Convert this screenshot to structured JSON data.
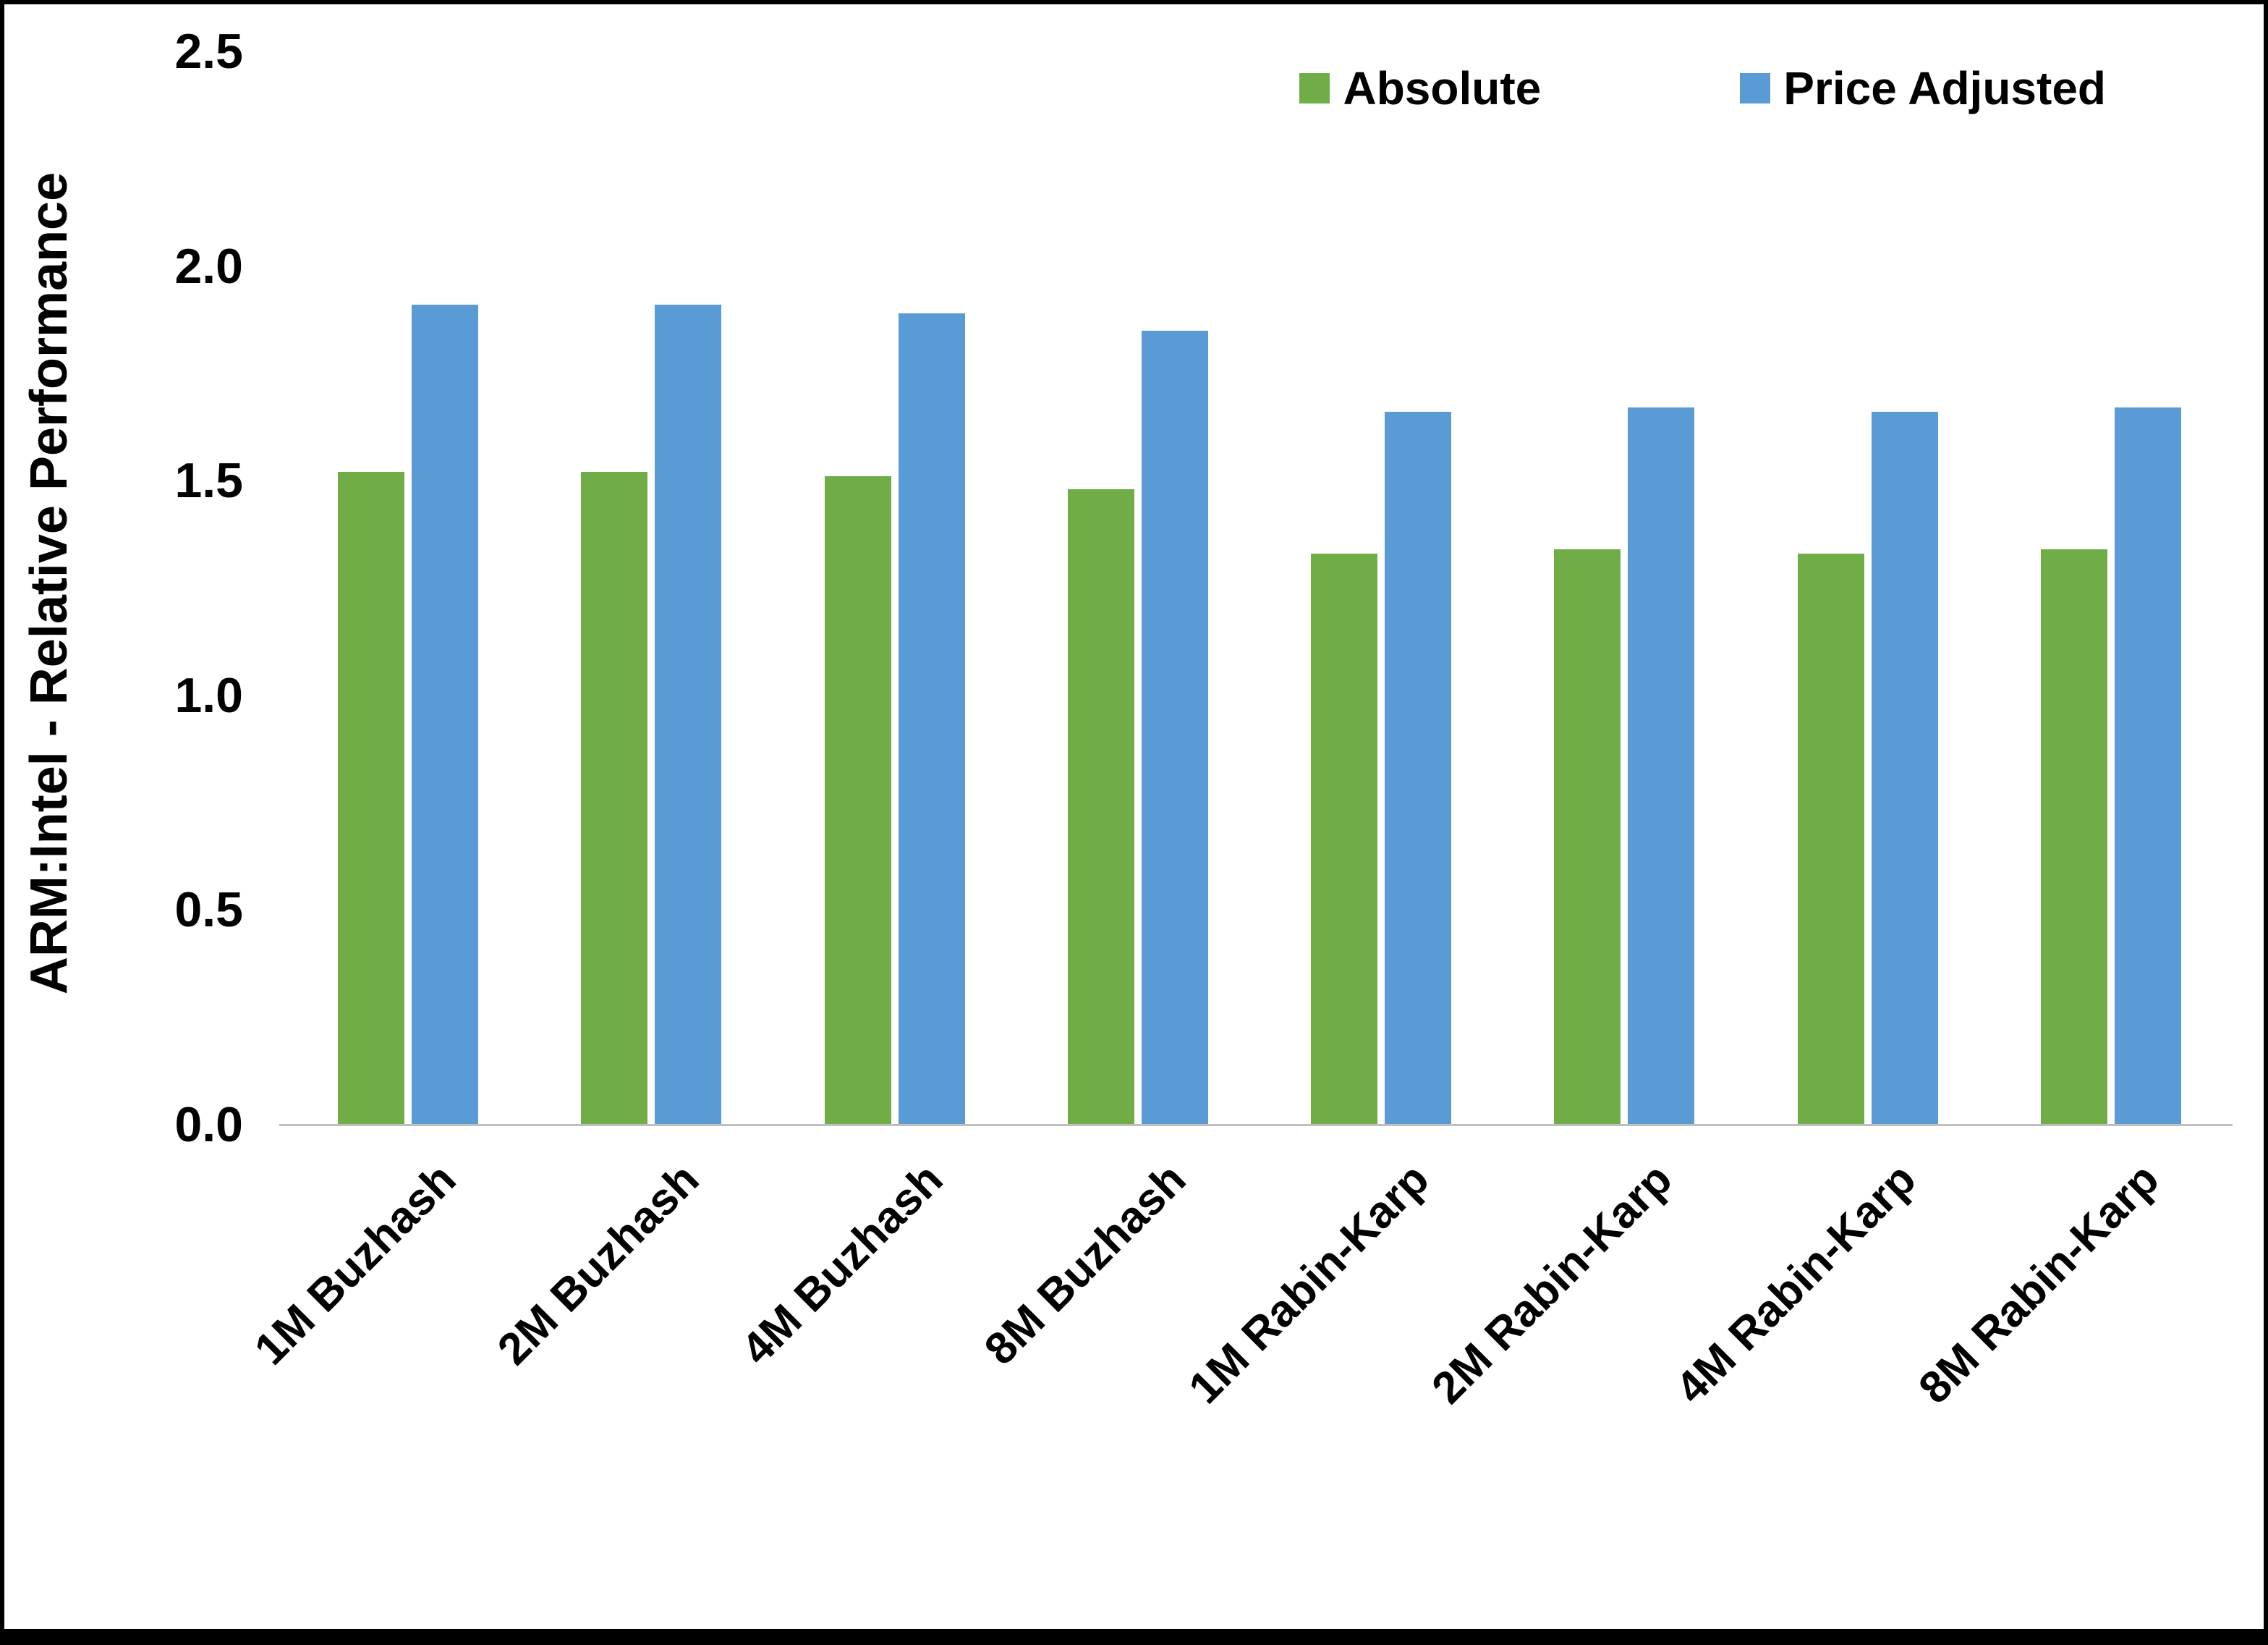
{
  "frame": {
    "background": "#FFFFFF",
    "border_color": "#000000"
  },
  "chart_data": {
    "type": "bar",
    "title": "",
    "xlabel": "",
    "ylabel": "ARM:Intel - Relative Performance",
    "ylim": [
      0,
      2.5
    ],
    "yticks": [
      "0.0",
      "0.5",
      "1.0",
      "1.5",
      "2.0",
      "2.5"
    ],
    "grid": false,
    "legend_position": "top-right",
    "axis_line_color": "#BFBFBF",
    "categories": [
      "1M Buzhash",
      "2M Buzhash",
      "4M Buzhash",
      "8M Buzhash",
      "1M Rabin-Karp",
      "2M Rabin-Karp",
      "4M Rabin-Karp",
      "8M Rabin-Karp"
    ],
    "series": [
      {
        "name": "Absolute",
        "color": "#70AD47",
        "values": [
          1.52,
          1.52,
          1.51,
          1.48,
          1.33,
          1.34,
          1.33,
          1.34
        ]
      },
      {
        "name": "Price Adjusted",
        "color": "#5B9BD5",
        "values": [
          1.91,
          1.91,
          1.89,
          1.85,
          1.66,
          1.67,
          1.66,
          1.67
        ]
      }
    ]
  }
}
